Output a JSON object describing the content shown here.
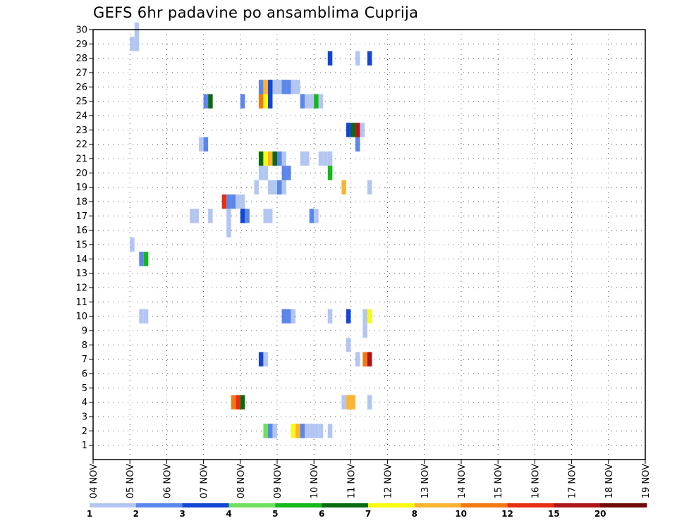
{
  "chart_data": {
    "type": "heatmap",
    "title": "GEFS 6hr padavine po ansamblima Cuprija",
    "xlabel": "",
    "ylabel": "",
    "x_ticks": [
      "04 NOV",
      "05 NOV",
      "06 NOV",
      "07 NOV",
      "08 NOV",
      "09 NOV",
      "10 NOV",
      "11 NOV",
      "12 NOV",
      "13 NOV",
      "14 NOV",
      "15 NOV",
      "16 NOV",
      "17 NOV",
      "18 NOV",
      "19 NOV"
    ],
    "xlim": [
      0,
      60
    ],
    "ylim": [
      0,
      30
    ],
    "y_ticks": [
      1,
      2,
      3,
      4,
      5,
      6,
      7,
      8,
      9,
      10,
      11,
      12,
      13,
      14,
      15,
      16,
      17,
      18,
      19,
      20,
      21,
      22,
      23,
      24,
      25,
      26,
      27,
      28,
      29,
      30
    ],
    "grid": "dotted",
    "color_scale": {
      "labels": [
        "1",
        "2",
        "3",
        "4",
        "5",
        "6",
        "7",
        "8",
        "10",
        "12",
        "15",
        "20"
      ],
      "colors": [
        "#b3c6f2",
        "#5b87eb",
        "#1446d6",
        "#6ee05f",
        "#13b81a",
        "#0b6a11",
        "#fafa10",
        "#fbb431",
        "#f47a10",
        "#e82d10",
        "#b0141b",
        "#700808"
      ]
    },
    "cells": [
      [
        4.5,
        30,
        1
      ],
      [
        4,
        29,
        1
      ],
      [
        4.5,
        29,
        1
      ],
      [
        25.5,
        28,
        3
      ],
      [
        28.5,
        28,
        1
      ],
      [
        29.8,
        28,
        3
      ],
      [
        18,
        26,
        2
      ],
      [
        18.5,
        26,
        8
      ],
      [
        19,
        26,
        3
      ],
      [
        19.5,
        26,
        1
      ],
      [
        20,
        26,
        1
      ],
      [
        20.5,
        26,
        2
      ],
      [
        21,
        26,
        2
      ],
      [
        21.5,
        26,
        1
      ],
      [
        22,
        26,
        1
      ],
      [
        12,
        25,
        2
      ],
      [
        12.5,
        25,
        6
      ],
      [
        16,
        25,
        2
      ],
      [
        18,
        25,
        9
      ],
      [
        18.5,
        25,
        7
      ],
      [
        19,
        25,
        3
      ],
      [
        22.5,
        25,
        2
      ],
      [
        23,
        25,
        1
      ],
      [
        23.5,
        25,
        1
      ],
      [
        24,
        25,
        5
      ],
      [
        24.5,
        25,
        1
      ],
      [
        27.5,
        23,
        3
      ],
      [
        28,
        23,
        6
      ],
      [
        28.5,
        23,
        11
      ],
      [
        29,
        23,
        1
      ],
      [
        11.5,
        22,
        1
      ],
      [
        12,
        22,
        2
      ],
      [
        28.5,
        22,
        2
      ],
      [
        18,
        21,
        6
      ],
      [
        18.5,
        21,
        7
      ],
      [
        19,
        21,
        8
      ],
      [
        19.5,
        21,
        6
      ],
      [
        20,
        21,
        2
      ],
      [
        20.5,
        21,
        1
      ],
      [
        22.5,
        21,
        1
      ],
      [
        23,
        21,
        1
      ],
      [
        24.5,
        21,
        1
      ],
      [
        25,
        21,
        1
      ],
      [
        25.5,
        21,
        1
      ],
      [
        18,
        20,
        1
      ],
      [
        18.5,
        20,
        1
      ],
      [
        20.5,
        20,
        2
      ],
      [
        21,
        20,
        2
      ],
      [
        25.5,
        20,
        5
      ],
      [
        17.5,
        19,
        1
      ],
      [
        19,
        19,
        1
      ],
      [
        19.5,
        19,
        1
      ],
      [
        20,
        19,
        2
      ],
      [
        20.5,
        19,
        1
      ],
      [
        27,
        19,
        8
      ],
      [
        29.8,
        19,
        1
      ],
      [
        14,
        18,
        10
      ],
      [
        14.5,
        18,
        2
      ],
      [
        15,
        18,
        2
      ],
      [
        15.5,
        18,
        1
      ],
      [
        16,
        18,
        1
      ],
      [
        10.5,
        17,
        1
      ],
      [
        11,
        17,
        1
      ],
      [
        12.5,
        17,
        1
      ],
      [
        14.5,
        17,
        1
      ],
      [
        16,
        17,
        3
      ],
      [
        16.5,
        17,
        2
      ],
      [
        18.5,
        17,
        1
      ],
      [
        19,
        17,
        1
      ],
      [
        23.5,
        17,
        2
      ],
      [
        24,
        17,
        1
      ],
      [
        14.5,
        16,
        1
      ],
      [
        4,
        15,
        1
      ],
      [
        5,
        14,
        2
      ],
      [
        5.5,
        14,
        5
      ],
      [
        5,
        10,
        1
      ],
      [
        5.5,
        10,
        1
      ],
      [
        20.5,
        10,
        2
      ],
      [
        21,
        10,
        2
      ],
      [
        21.5,
        10,
        1
      ],
      [
        25.5,
        10,
        1
      ],
      [
        27.5,
        10,
        3
      ],
      [
        29.3,
        10,
        1
      ],
      [
        29.8,
        10,
        7
      ],
      [
        29.3,
        9,
        1
      ],
      [
        27.5,
        8,
        1
      ],
      [
        18,
        7,
        3
      ],
      [
        18.5,
        7,
        1
      ],
      [
        28.5,
        7,
        1
      ],
      [
        29.3,
        7,
        9
      ],
      [
        29.8,
        7,
        11
      ],
      [
        15,
        4,
        9
      ],
      [
        15.5,
        4,
        10
      ],
      [
        16,
        4,
        6
      ],
      [
        27,
        4,
        1
      ],
      [
        27.5,
        4,
        8
      ],
      [
        28,
        4,
        8
      ],
      [
        29.8,
        4,
        1
      ],
      [
        18.5,
        2,
        4
      ],
      [
        19,
        2,
        2
      ],
      [
        19.5,
        2,
        1
      ],
      [
        21.5,
        2,
        7
      ],
      [
        22,
        2,
        8
      ],
      [
        22.5,
        2,
        2
      ],
      [
        23,
        2,
        1
      ],
      [
        23.5,
        2,
        1
      ],
      [
        24,
        2,
        1
      ],
      [
        24.5,
        2,
        1
      ],
      [
        25.5,
        2,
        1
      ]
    ]
  }
}
